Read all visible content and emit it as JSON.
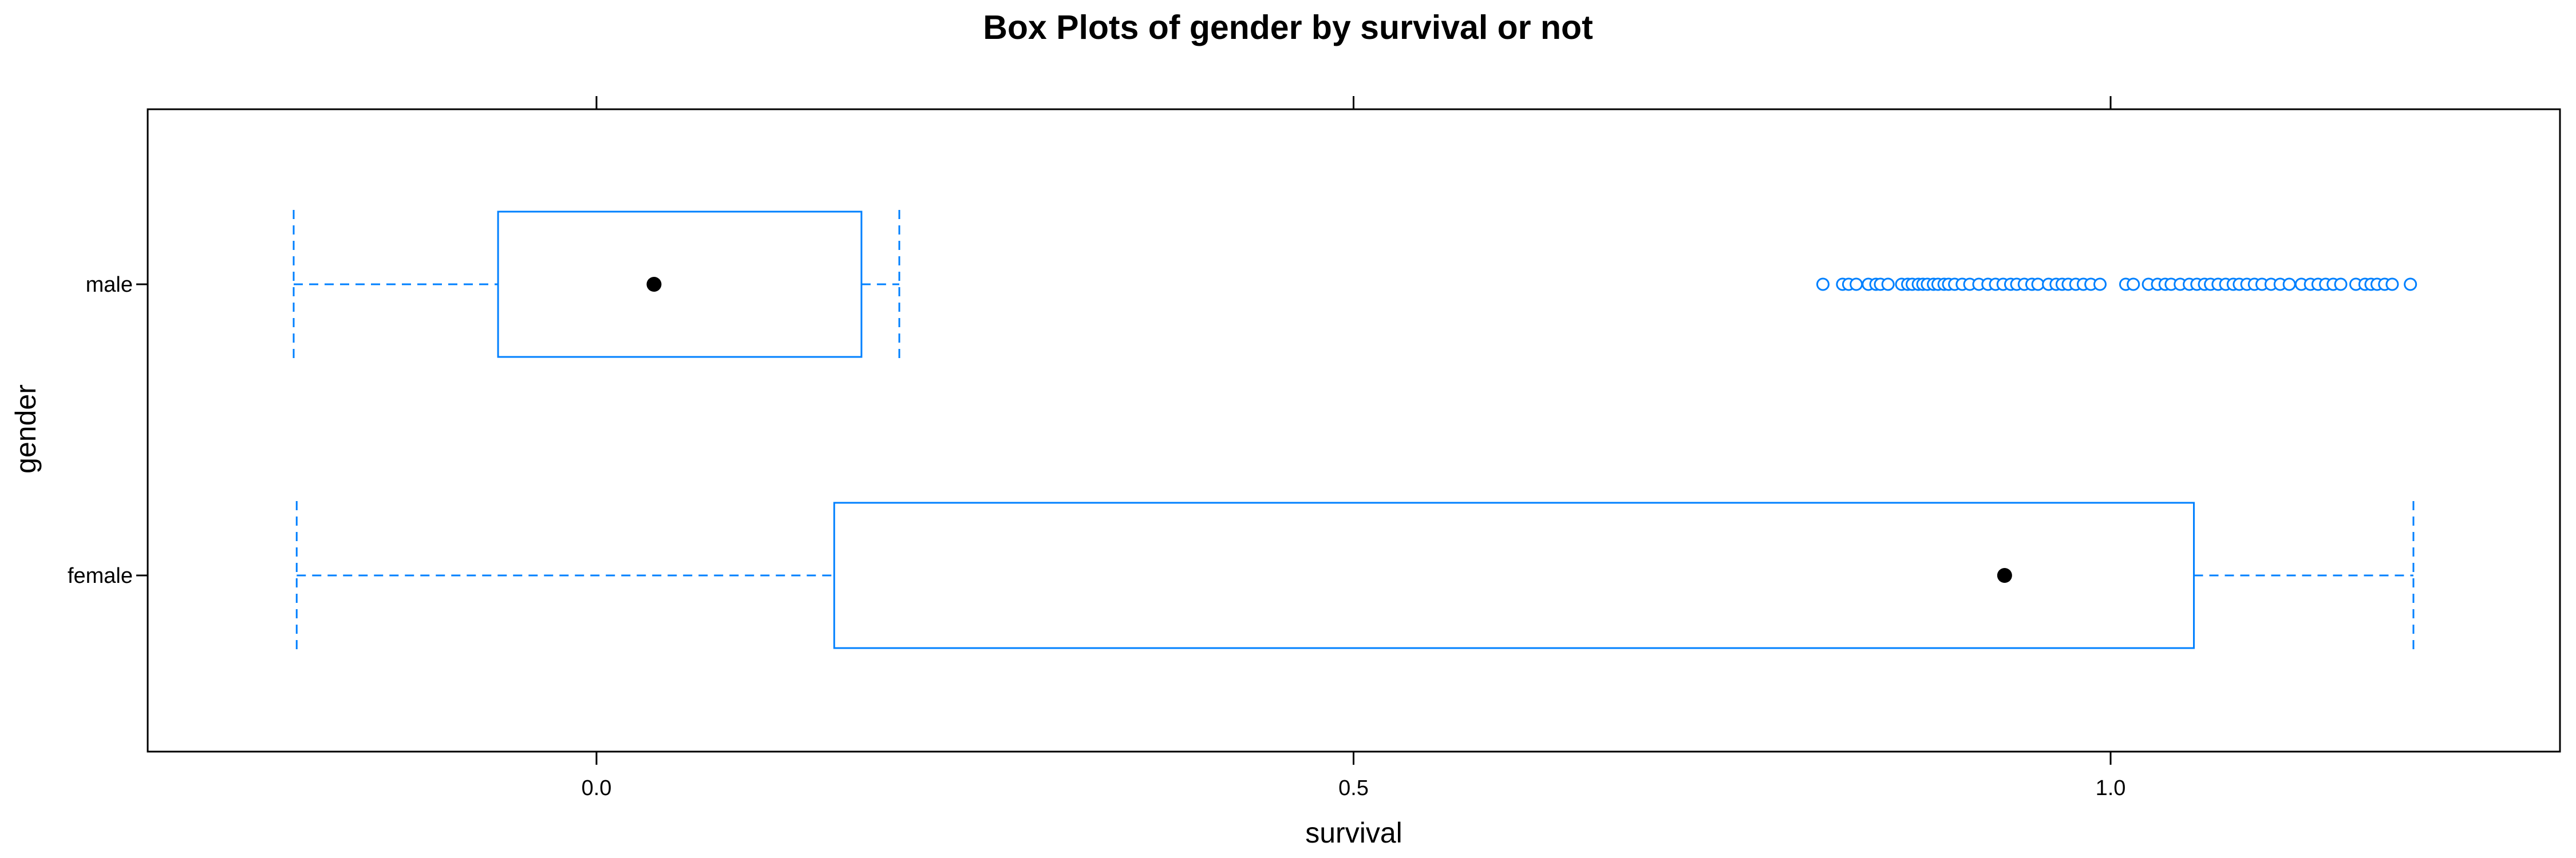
{
  "chart_data": {
    "type": "boxplot",
    "title": "Box Plots of gender by survival or not",
    "xlabel": "survival",
    "ylabel": "gender",
    "xlim": [
      -0.3,
      1.3
    ],
    "xticks": [
      0.0,
      0.5,
      1.0
    ],
    "xtick_labels": [
      "0.0",
      "0.5",
      "1.0"
    ],
    "grid": false,
    "orientation": "horizontal",
    "categories": [
      "male",
      "female"
    ],
    "boxes": [
      {
        "category": "male",
        "whisker_low": -0.2,
        "q1": -0.065,
        "median": 0.038,
        "q3": 0.175,
        "whisker_high": 0.2,
        "outliers": [
          0.81,
          0.823,
          0.827,
          0.832,
          0.84,
          0.845,
          0.848,
          0.853,
          0.862,
          0.866,
          0.869,
          0.873,
          0.876,
          0.879,
          0.883,
          0.886,
          0.89,
          0.893,
          0.897,
          0.902,
          0.907,
          0.913,
          0.919,
          0.924,
          0.929,
          0.934,
          0.938,
          0.943,
          0.948,
          0.952,
          0.959,
          0.964,
          0.968,
          0.972,
          0.977,
          0.982,
          0.987,
          0.993,
          1.01,
          1.015,
          1.025,
          1.031,
          1.036,
          1.04,
          1.046,
          1.052,
          1.057,
          1.062,
          1.066,
          1.071,
          1.076,
          1.081,
          1.085,
          1.09,
          1.095,
          1.1,
          1.106,
          1.112,
          1.118,
          1.126,
          1.132,
          1.137,
          1.142,
          1.147,
          1.152,
          1.162,
          1.168,
          1.172,
          1.176,
          1.181,
          1.186,
          1.198
        ]
      },
      {
        "category": "female",
        "whisker_low": -0.198,
        "q1": 0.157,
        "median": 0.93,
        "q3": 1.055,
        "whisker_high": 1.2,
        "outliers": []
      }
    ],
    "colors": {
      "box": "#0080ff",
      "median_dot": "#000000",
      "frame": "#000000"
    }
  }
}
